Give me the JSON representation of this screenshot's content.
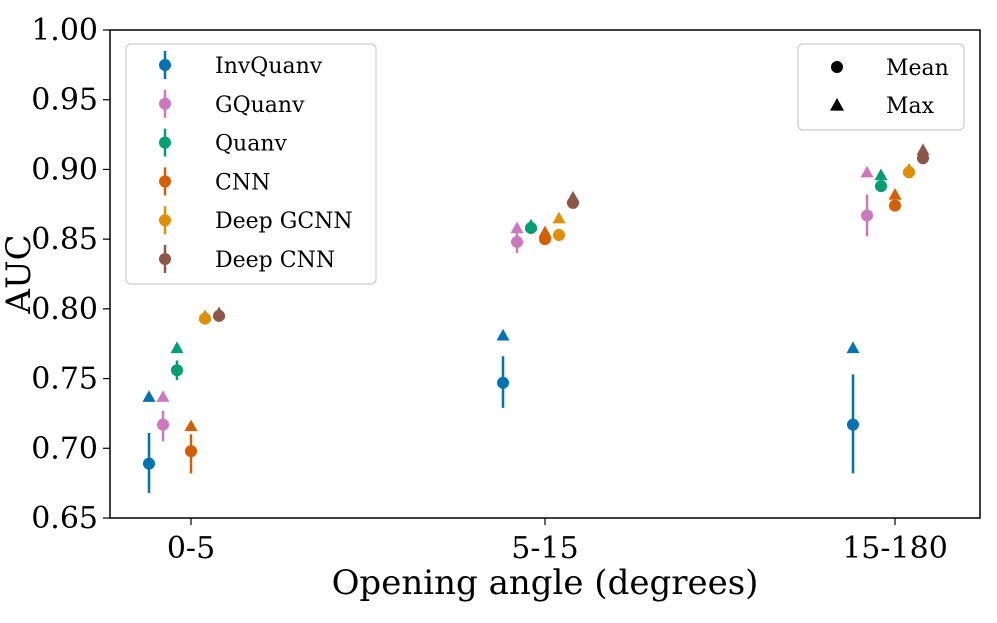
{
  "chart_data": {
    "type": "scatter",
    "xlabel": "Opening angle (degrees)",
    "ylabel": "AUC",
    "ylim": [
      0.65,
      1.0
    ],
    "yticks": [
      "0.65",
      "0.70",
      "0.75",
      "0.80",
      "0.85",
      "0.90",
      "0.95",
      "1.00"
    ],
    "categories": [
      "0-5",
      "5-15",
      "15-180"
    ],
    "series": [
      {
        "name": "InvQuanv",
        "color": "#0173b2",
        "mean": [
          0.689,
          0.747,
          0.717
        ],
        "err_low": [
          0.668,
          0.729,
          0.682
        ],
        "err_high": [
          0.711,
          0.766,
          0.753
        ],
        "max": [
          0.737,
          0.781,
          0.772
        ]
      },
      {
        "name": "GQuanv",
        "color": "#cc78bc",
        "mean": [
          0.717,
          0.848,
          0.867
        ],
        "err_low": [
          0.705,
          0.84,
          0.852
        ],
        "err_high": [
          0.727,
          0.855,
          0.882
        ],
        "max": [
          0.737,
          0.858,
          0.898
        ]
      },
      {
        "name": "Quanv",
        "color": "#029e73",
        "mean": [
          0.756,
          0.858,
          0.888
        ],
        "err_low": [
          0.749,
          0.855,
          0.884
        ],
        "err_high": [
          0.763,
          0.861,
          0.892
        ],
        "max": [
          0.772,
          0.86,
          0.896
        ]
      },
      {
        "name": "CNN",
        "color": "#d55e00",
        "mean": [
          0.698,
          0.85,
          0.874
        ],
        "err_low": [
          0.682,
          0.846,
          0.87
        ],
        "err_high": [
          0.71,
          0.854,
          0.878
        ],
        "max": [
          0.716,
          0.855,
          0.882
        ]
      },
      {
        "name": "Deep GCNN",
        "color": "#de8f05",
        "mean": [
          0.793,
          0.853,
          0.898
        ],
        "err_low": [
          0.791,
          0.85,
          0.895
        ],
        "err_high": [
          0.796,
          0.856,
          0.901
        ],
        "max": [
          0.795,
          0.865,
          0.9
        ]
      },
      {
        "name": "Deep CNN",
        "color": "#8c564b",
        "mean": [
          0.795,
          0.876,
          0.908
        ],
        "err_low": [
          0.792,
          0.873,
          0.905
        ],
        "err_high": [
          0.797,
          0.879,
          0.911
        ],
        "max": [
          0.797,
          0.88,
          0.914
        ]
      }
    ],
    "marker_legend": [
      {
        "label": "Mean",
        "marker": "circle"
      },
      {
        "label": "Max",
        "marker": "triangle"
      }
    ],
    "legend_positions": [
      "top-left",
      "top-right"
    ]
  }
}
